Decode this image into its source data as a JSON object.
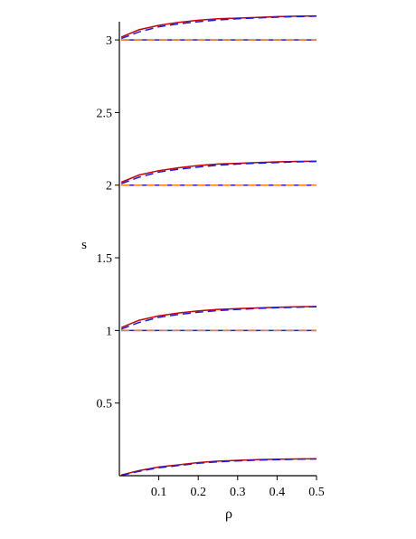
{
  "chart_data": {
    "type": "line",
    "xlabel": "ρ",
    "ylabel": "s",
    "xlim": [
      0,
      0.5
    ],
    "ylim": [
      0,
      3.15
    ],
    "x_ticks": [
      "0.1",
      "0.2",
      "0.3",
      "0.4",
      "0.5"
    ],
    "y_ticks": [
      "0.5",
      "1",
      "1.5",
      "2",
      "2.5",
      "3"
    ],
    "grid": false,
    "legend": "none",
    "colors": {
      "red": "#cc0000",
      "blue": "#1a1ae6",
      "orange": "#ff8000",
      "axis": "#000000"
    },
    "series": [
      {
        "color": "red",
        "style": "solid",
        "offset": 3,
        "x": [
          0.005,
          0.05,
          0.1,
          0.15,
          0.2,
          0.25,
          0.3,
          0.35,
          0.4,
          0.45,
          0.5
        ],
        "y": [
          3.02,
          3.07,
          3.1,
          3.12,
          3.135,
          3.145,
          3.15,
          3.155,
          3.16,
          3.163,
          3.165
        ]
      },
      {
        "color": "blue",
        "style": "dashed",
        "offset": 3,
        "x": [
          0.005,
          0.05,
          0.1,
          0.15,
          0.2,
          0.25,
          0.3,
          0.35,
          0.4,
          0.45,
          0.5
        ],
        "y": [
          3.01,
          3.055,
          3.09,
          3.11,
          3.125,
          3.137,
          3.145,
          3.151,
          3.156,
          3.16,
          3.163
        ]
      },
      {
        "color": "blue",
        "style": "solid",
        "offset": 3,
        "x": [
          0.005,
          0.5
        ],
        "y": [
          3.0,
          3.0
        ]
      },
      {
        "color": "orange",
        "style": "dashed",
        "offset": 3,
        "x": [
          0.005,
          0.5
        ],
        "y": [
          3.0,
          3.0
        ]
      },
      {
        "color": "red",
        "style": "solid",
        "offset": 2,
        "x": [
          0.005,
          0.05,
          0.1,
          0.15,
          0.2,
          0.25,
          0.3,
          0.35,
          0.4,
          0.45,
          0.5
        ],
        "y": [
          2.02,
          2.07,
          2.1,
          2.12,
          2.135,
          2.145,
          2.15,
          2.155,
          2.16,
          2.163,
          2.165
        ]
      },
      {
        "color": "blue",
        "style": "dashed",
        "offset": 2,
        "x": [
          0.005,
          0.05,
          0.1,
          0.15,
          0.2,
          0.25,
          0.3,
          0.35,
          0.4,
          0.45,
          0.5
        ],
        "y": [
          2.01,
          2.055,
          2.09,
          2.11,
          2.125,
          2.137,
          2.145,
          2.151,
          2.156,
          2.16,
          2.163
        ]
      },
      {
        "color": "blue",
        "style": "solid",
        "offset": 2,
        "x": [
          0.005,
          0.5
        ],
        "y": [
          2.0,
          2.0
        ]
      },
      {
        "color": "orange",
        "style": "dashed",
        "offset": 2,
        "x": [
          0.005,
          0.5
        ],
        "y": [
          2.0,
          2.0
        ]
      },
      {
        "color": "red",
        "style": "solid",
        "offset": 1,
        "x": [
          0.005,
          0.05,
          0.1,
          0.15,
          0.2,
          0.25,
          0.3,
          0.35,
          0.4,
          0.45,
          0.5
        ],
        "y": [
          1.02,
          1.07,
          1.1,
          1.12,
          1.135,
          1.145,
          1.15,
          1.155,
          1.16,
          1.163,
          1.165
        ]
      },
      {
        "color": "blue",
        "style": "dashed",
        "offset": 1,
        "x": [
          0.005,
          0.05,
          0.1,
          0.15,
          0.2,
          0.25,
          0.3,
          0.35,
          0.4,
          0.45,
          0.5
        ],
        "y": [
          1.01,
          1.055,
          1.09,
          1.11,
          1.125,
          1.137,
          1.145,
          1.151,
          1.156,
          1.16,
          1.163
        ]
      },
      {
        "color": "blue",
        "style": "solid",
        "offset": 1,
        "x": [
          0.005,
          0.5
        ],
        "y": [
          1.0,
          1.0
        ]
      },
      {
        "color": "orange",
        "style": "dashed",
        "offset": 1,
        "x": [
          0.005,
          0.5
        ],
        "y": [
          1.0,
          1.0
        ]
      },
      {
        "color": "red",
        "style": "solid",
        "offset": 0,
        "x": [
          0.005,
          0.05,
          0.1,
          0.15,
          0.2,
          0.25,
          0.3,
          0.35,
          0.4,
          0.45,
          0.5
        ],
        "y": [
          0.005,
          0.035,
          0.06,
          0.075,
          0.09,
          0.1,
          0.106,
          0.11,
          0.113,
          0.115,
          0.117
        ]
      },
      {
        "color": "blue",
        "style": "dashed",
        "offset": 0,
        "x": [
          0.005,
          0.05,
          0.1,
          0.15,
          0.2,
          0.25,
          0.3,
          0.35,
          0.4,
          0.45,
          0.5
        ],
        "y": [
          0.002,
          0.03,
          0.055,
          0.07,
          0.085,
          0.095,
          0.102,
          0.107,
          0.11,
          0.113,
          0.115
        ]
      }
    ]
  }
}
